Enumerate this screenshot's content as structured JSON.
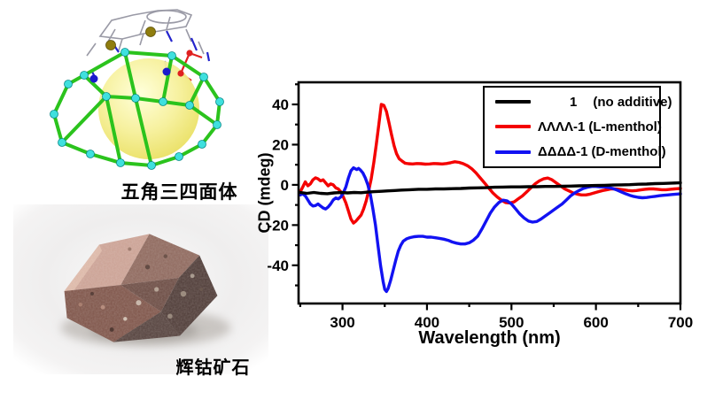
{
  "page": {
    "background": "#ffffff"
  },
  "figures": {
    "cage_caption": "五角三四面体",
    "rock_caption": "辉钴矿石",
    "cage_colors": {
      "edge_green": "#2bc31d",
      "vertex_cyan": "#3fe0de",
      "guest_sphere_yellow": "#f2ec7d",
      "ligand_gray": "#9a9aa6",
      "nitrogen_blue": "#2424cc",
      "oxygen_red": "#e02020",
      "sulfur_olive": "#8f7d0e"
    },
    "rock_colors": {
      "backdrop": "#ececec",
      "pink_face": "#cba194",
      "brown_face": "#8d675c",
      "dark_face": "#4d3a36",
      "front_face": "#7d5348"
    }
  },
  "chart_data": {
    "type": "line",
    "title": "",
    "xlabel": "Wavelength (nm)",
    "ylabel": "CD (mdeg)",
    "xlim": [
      248,
      700
    ],
    "ylim": [
      -59,
      51
    ],
    "x_ticks": [
      300,
      400,
      500,
      600,
      700
    ],
    "x_minor_ticks": [
      250,
      350,
      450,
      550,
      650
    ],
    "y_ticks": [
      40,
      20,
      0,
      -20,
      -40
    ],
    "y_minor_ticks": [
      50,
      30,
      10,
      -10,
      -30,
      -50
    ],
    "grid": false,
    "frame_color": "#000000",
    "legend": {
      "position": "top-right",
      "border": true,
      "entries": [
        {
          "name": "1",
          "desc": "(no additive)",
          "color": "#000000"
        },
        {
          "name": "ΛΛΛΛ-1",
          "desc": "(L-menthol)",
          "color": "#f40000"
        },
        {
          "name": "ΔΔΔΔ-1",
          "desc": "(D-menthol)",
          "color": "#1212f2"
        }
      ]
    },
    "series": [
      {
        "name": "ΛΛΛΛ-1 (L-menthol)",
        "color": "#f40000",
        "x": [
          250,
          253,
          256,
          259,
          262,
          265,
          268,
          271,
          274,
          277,
          280,
          283,
          286,
          289,
          292,
          295,
          298,
          301,
          304,
          307,
          310,
          313,
          316,
          319,
          322,
          325,
          328,
          331,
          334,
          337,
          340,
          343,
          346,
          349,
          352,
          355,
          358,
          361,
          364,
          367,
          370,
          374,
          378,
          383,
          388,
          393,
          398,
          403,
          408,
          413,
          418,
          423,
          428,
          433,
          438,
          443,
          448,
          453,
          458,
          463,
          468,
          473,
          478,
          483,
          488,
          493,
          498,
          503,
          508,
          513,
          518,
          523,
          528,
          533,
          538,
          543,
          548,
          553,
          558,
          563,
          568,
          573,
          578,
          583,
          588,
          593,
          598,
          603,
          608,
          613,
          618,
          623,
          628,
          633,
          638,
          643,
          648,
          653,
          658,
          663,
          668,
          673,
          678,
          683,
          688,
          693,
          700
        ],
        "y": [
          -3.5,
          -1,
          1.5,
          -0.5,
          0.5,
          2.5,
          3.5,
          3,
          2,
          2.5,
          1,
          -0.5,
          0.5,
          0,
          -1.5,
          -2,
          -3.5,
          -6,
          -9,
          -13,
          -17,
          -19,
          -18,
          -16.5,
          -15,
          -12,
          -8,
          -3,
          3,
          11,
          20,
          30,
          40,
          39.5,
          36.5,
          31,
          25,
          19.5,
          15.5,
          13,
          12,
          10.8,
          10.5,
          10.4,
          10.6,
          10.5,
          10.3,
          10.4,
          10.6,
          10.5,
          10.4,
          10.6,
          11,
          11.5,
          11.2,
          10.5,
          9.5,
          8,
          6,
          3.5,
          1,
          -1.5,
          -4,
          -6,
          -7.5,
          -8.8,
          -9,
          -8.5,
          -7,
          -5.5,
          -3.5,
          -1.5,
          0.5,
          2,
          3,
          3.4,
          2.5,
          1,
          -0.5,
          -2,
          -3,
          -4,
          -4.6,
          -5,
          -5,
          -4.6,
          -4,
          -3.4,
          -2.8,
          -2.4,
          -2,
          -2,
          -2.2,
          -2.5,
          -2.8,
          -3,
          -2.8,
          -2.5,
          -2.2,
          -2,
          -2,
          -2.2,
          -2.4,
          -2.4,
          -2.2,
          -2,
          -1.8
        ]
      },
      {
        "name": "ΔΔΔΔ-1 (D-menthol)",
        "color": "#1212f2",
        "x": [
          250,
          253,
          256,
          259,
          262,
          265,
          268,
          271,
          274,
          277,
          280,
          283,
          286,
          289,
          292,
          295,
          298,
          301,
          304,
          307,
          310,
          313,
          315,
          317,
          319,
          321,
          324,
          327,
          330,
          333,
          336,
          339,
          342,
          345,
          348,
          350,
          352,
          354,
          357,
          360,
          363,
          366,
          369,
          372,
          376,
          380,
          385,
          390,
          395,
          400,
          405,
          410,
          415,
          420,
          425,
          430,
          435,
          440,
          445,
          450,
          455,
          460,
          465,
          470,
          475,
          480,
          485,
          490,
          495,
          500,
          505,
          510,
          515,
          520,
          525,
          530,
          535,
          540,
          545,
          550,
          555,
          560,
          565,
          570,
          575,
          580,
          585,
          590,
          595,
          600,
          605,
          610,
          615,
          620,
          625,
          630,
          635,
          640,
          645,
          650,
          655,
          660,
          665,
          670,
          675,
          680,
          685,
          690,
          695,
          700
        ],
        "y": [
          -5,
          -4.5,
          -5.5,
          -7.5,
          -9.5,
          -10.5,
          -10.3,
          -9.5,
          -10.5,
          -11.5,
          -12,
          -11,
          -9.5,
          -7.5,
          -6.5,
          -7,
          -6,
          -4,
          -1,
          3.5,
          7,
          8.5,
          8,
          7.6,
          8.2,
          7.5,
          6,
          3.5,
          0,
          -5,
          -12,
          -20,
          -30,
          -40,
          -48,
          -52,
          -53,
          -51.5,
          -47.5,
          -42.5,
          -37.5,
          -33,
          -30,
          -28,
          -26.8,
          -26.2,
          -25.8,
          -25.6,
          -25.6,
          -26,
          -26,
          -26.3,
          -26.6,
          -27,
          -27.6,
          -28.4,
          -29,
          -29.4,
          -29.4,
          -28.8,
          -27.5,
          -25.5,
          -22,
          -18,
          -14,
          -11,
          -8.8,
          -7.6,
          -8,
          -9.5,
          -12,
          -14.5,
          -16.5,
          -18,
          -18.5,
          -18.2,
          -17,
          -15.5,
          -14,
          -12.5,
          -11,
          -9.5,
          -7.5,
          -5.5,
          -4,
          -2.8,
          -1.8,
          -1.2,
          -0.8,
          -0.8,
          -1,
          -1,
          -1.3,
          -1.8,
          -2.6,
          -3.5,
          -4.4,
          -5.2,
          -5.8,
          -6.2,
          -6.4,
          -6.3,
          -6,
          -5.7,
          -5.4,
          -5.2,
          -5,
          -4.8,
          -4.6,
          -4.5
        ]
      },
      {
        "name": "1 (no additive)",
        "color": "#000000",
        "x": [
          250,
          258,
          266,
          274,
          282,
          290,
          298,
          306,
          314,
          322,
          330,
          338,
          346,
          354,
          362,
          370,
          380,
          390,
          400,
          410,
          420,
          430,
          440,
          450,
          460,
          470,
          480,
          490,
          500,
          510,
          520,
          530,
          540,
          550,
          560,
          570,
          580,
          590,
          600,
          610,
          620,
          630,
          640,
          650,
          660,
          670,
          680,
          690,
          700
        ],
        "y": [
          -3.8,
          -4.2,
          -3.8,
          -4.2,
          -4.4,
          -4,
          -3.8,
          -4,
          -3.8,
          -3.9,
          -3.6,
          -3.4,
          -3.2,
          -3,
          -2.8,
          -2.6,
          -2.4,
          -2.2,
          -2.2,
          -2,
          -2,
          -1.9,
          -1.8,
          -1.6,
          -1.5,
          -1.4,
          -1.2,
          -1.1,
          -1,
          -1,
          -0.9,
          -0.9,
          -0.8,
          -0.8,
          -0.7,
          -0.6,
          -0.5,
          -0.4,
          -0.3,
          -0.2,
          -0.1,
          0,
          0.1,
          0.3,
          0.4,
          0.6,
          0.7,
          0.9,
          1
        ]
      }
    ]
  }
}
